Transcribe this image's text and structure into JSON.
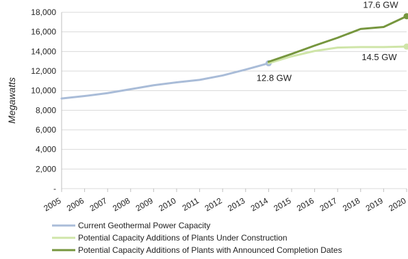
{
  "chart_data": {
    "type": "line",
    "ylabel": "Megawatts",
    "ylim": [
      0,
      18000
    ],
    "y_ticks": [
      0,
      2000,
      4000,
      6000,
      8000,
      10000,
      12000,
      14000,
      16000,
      18000
    ],
    "y_tick_labels": [
      "-",
      "2,000",
      "4,000",
      "6,000",
      "8,000",
      "10,000",
      "12,000",
      "14,000",
      "16,000",
      "18,000"
    ],
    "x_ticks": [
      "2005",
      "2006",
      "2007",
      "2008",
      "2009",
      "2010",
      "2011",
      "2012",
      "2013",
      "2014",
      "2015",
      "2016",
      "2017",
      "2018",
      "2019",
      "2020"
    ],
    "grid": true,
    "legend_position": "bottom",
    "series": [
      {
        "name": "Current Geothermal Power Capacity",
        "color": "#a9bcd8",
        "x": [
          2005,
          2006,
          2007,
          2008,
          2009,
          2010,
          2011,
          2012,
          2013,
          2014
        ],
        "values": [
          9200,
          9450,
          9750,
          10150,
          10550,
          10850,
          11100,
          11550,
          12150,
          12800
        ]
      },
      {
        "name": "Potential Capacity Additions of Plants Under Construction",
        "color": "#cfe5a8",
        "x": [
          2014,
          2015,
          2016,
          2017,
          2018,
          2019,
          2020
        ],
        "values": [
          12800,
          13500,
          14050,
          14400,
          14450,
          14450,
          14500
        ]
      },
      {
        "name": "Potential Capacity Additions of Plants with Announced Completion Dates",
        "color": "#76963e",
        "x": [
          2014,
          2015,
          2016,
          2017,
          2018,
          2019,
          2020
        ],
        "values": [
          12950,
          13750,
          14600,
          15400,
          16300,
          16500,
          17600
        ]
      }
    ],
    "annotations": [
      {
        "text": "12.8 GW",
        "x": 2014,
        "y": 12800
      },
      {
        "text": "14.5 GW",
        "x": 2020,
        "y": 14500
      },
      {
        "text": "17.6 GW",
        "x": 2020,
        "y": 17600
      }
    ]
  }
}
